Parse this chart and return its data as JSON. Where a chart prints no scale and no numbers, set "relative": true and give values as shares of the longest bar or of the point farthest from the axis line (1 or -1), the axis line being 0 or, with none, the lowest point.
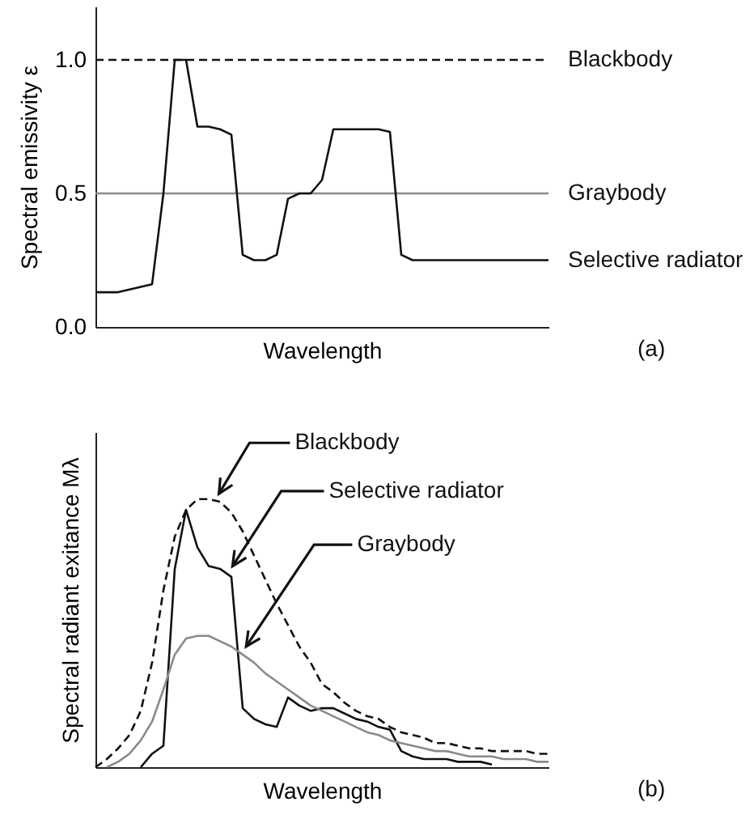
{
  "chart_data": [
    {
      "type": "line",
      "ylabel": "Spectral emissivity ε",
      "xlabel": "Wavelength",
      "annotations": [
        "(a)"
      ],
      "tick_labels": "y",
      "categories": [
        null,
        null,
        null,
        null,
        null,
        null,
        null,
        null,
        null,
        null,
        null,
        null,
        null,
        null,
        null,
        null,
        null,
        null,
        null,
        null,
        null,
        null,
        null,
        null,
        null,
        null,
        null,
        null,
        null,
        null,
        null,
        null,
        null,
        null,
        null,
        null,
        null,
        null,
        null,
        null,
        null
      ],
      "ylim": [
        0,
        1.2
      ],
      "yticks": [
        {
          "value": 0,
          "label": "0.0"
        },
        {
          "value": 0.5,
          "label": "0.5"
        },
        {
          "value": 1,
          "label": "1.0"
        }
      ],
      "series": [
        {
          "name": "Blackbody",
          "color": "#111111",
          "line_style": "dashed",
          "values": [
            1,
            1,
            1,
            1,
            1,
            1,
            1,
            1,
            1,
            1,
            1,
            1,
            1,
            1,
            1,
            1,
            1,
            1,
            1,
            1,
            1,
            1,
            1,
            1,
            1,
            1,
            1,
            1,
            1,
            1,
            1,
            1,
            1,
            1,
            1,
            1,
            1,
            1,
            1,
            1,
            1
          ]
        },
        {
          "name": "Graybody",
          "color": "#8a8a8a",
          "values": [
            0.5,
            0.5,
            0.5,
            0.5,
            0.5,
            0.5,
            0.5,
            0.5,
            0.5,
            0.5,
            0.5,
            0.5,
            0.5,
            0.5,
            0.5,
            0.5,
            0.5,
            0.5,
            0.5,
            0.5,
            0.5,
            0.5,
            0.5,
            0.5,
            0.5,
            0.5,
            0.5,
            0.5,
            0.5,
            0.5,
            0.5,
            0.5,
            0.5,
            0.5,
            0.5,
            0.5,
            0.5,
            0.5,
            0.5,
            0.5,
            0.5
          ]
        },
        {
          "name": "Selective radiator",
          "color": "#111111",
          "values": [
            0.13,
            0.13,
            0.13,
            0.14,
            0.15,
            0.16,
            0.5,
            1,
            1,
            0.75,
            0.75,
            0.74,
            0.72,
            0.27,
            0.25,
            0.25,
            0.27,
            0.48,
            0.5,
            0.5,
            0.55,
            0.74,
            0.74,
            0.74,
            0.74,
            0.74,
            0.73,
            0.27,
            0.25,
            0.25,
            0.25,
            0.25,
            0.25,
            0.25,
            0.25,
            0.25,
            0.25,
            0.25,
            0.25,
            0.25,
            0.25
          ]
        }
      ]
    },
    {
      "type": "line",
      "ylabel": "Spectral radiant exitance Mλ",
      "xlabel": "Wavelength",
      "annotations": [
        "(b)"
      ],
      "tick_labels": false,
      "relative": true,
      "categories": [
        null,
        null,
        null,
        null,
        null,
        null,
        null,
        null,
        null,
        null,
        null,
        null,
        null,
        null,
        null,
        null,
        null,
        null,
        null,
        null,
        null,
        null,
        null,
        null,
        null,
        null,
        null,
        null,
        null,
        null,
        null,
        null,
        null,
        null,
        null,
        null,
        null,
        null,
        null,
        null,
        null
      ],
      "series": [
        {
          "name": "Blackbody",
          "color": "#111111",
          "line_style": "dashed",
          "values": [
            0,
            0.03,
            0.07,
            0.12,
            0.21,
            0.39,
            0.66,
            0.86,
            0.96,
            1,
            1,
            0.99,
            0.95,
            0.88,
            0.79,
            0.7,
            0.61,
            0.53,
            0.45,
            0.39,
            0.31,
            0.28,
            0.24,
            0.21,
            0.19,
            0.18,
            0.15,
            0.13,
            0.12,
            0.11,
            0.09,
            0.09,
            0.08,
            0.07,
            0.07,
            0.06,
            0.06,
            0.06,
            0.06,
            0.05,
            0.05
          ]
        },
        {
          "name": "Selective radiator",
          "color": "#111111",
          "values": [
            null,
            null,
            null,
            null,
            0,
            0.05,
            0.08,
            0.74,
            0.96,
            0.82,
            0.75,
            0.74,
            0.71,
            0.22,
            0.18,
            0.16,
            0.15,
            0.26,
            0.23,
            0.21,
            0.22,
            0.22,
            0.2,
            0.18,
            0.17,
            0.15,
            0.14,
            0.06,
            0.04,
            0.03,
            0.03,
            0.03,
            0.02,
            0.02,
            0.02,
            0.01,
            null,
            null,
            null,
            null,
            null
          ]
        },
        {
          "name": "Graybody",
          "color": "#8a8a8a",
          "values": [
            null,
            0,
            0.02,
            0.05,
            0.1,
            0.17,
            0.29,
            0.42,
            0.48,
            0.49,
            0.49,
            0.47,
            0.45,
            0.42,
            0.39,
            0.35,
            0.32,
            0.29,
            0.26,
            0.23,
            0.21,
            0.19,
            0.17,
            0.15,
            0.13,
            0.12,
            0.1,
            0.09,
            0.08,
            0.07,
            0.06,
            0.06,
            0.05,
            0.04,
            0.04,
            0.04,
            0.03,
            0.03,
            0.03,
            0.02,
            0.02
          ]
        }
      ]
    }
  ]
}
